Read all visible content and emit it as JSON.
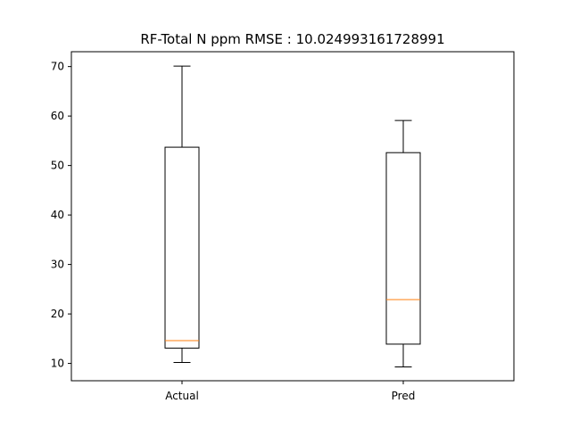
{
  "chart_data": {
    "type": "boxplot",
    "title": "RF-Total N ppm RMSE : 10.024993161728991",
    "xlabel": "",
    "ylabel": "",
    "ylim": [
      6.5,
      73
    ],
    "yticks": [
      10,
      20,
      30,
      40,
      50,
      60,
      70
    ],
    "grid": false,
    "categories": [
      "Actual",
      "Pred"
    ],
    "boxes": [
      {
        "label": "Actual",
        "whisker_low": 10.2,
        "q1": 13.1,
        "median": 14.6,
        "q3": 53.7,
        "whisker_high": 70.1
      },
      {
        "label": "Pred",
        "whisker_low": 9.3,
        "q1": 13.9,
        "median": 22.9,
        "q3": 52.6,
        "whisker_high": 59.1
      }
    ],
    "colors": {
      "box": "#000000",
      "median": "#ff7f0e"
    }
  }
}
